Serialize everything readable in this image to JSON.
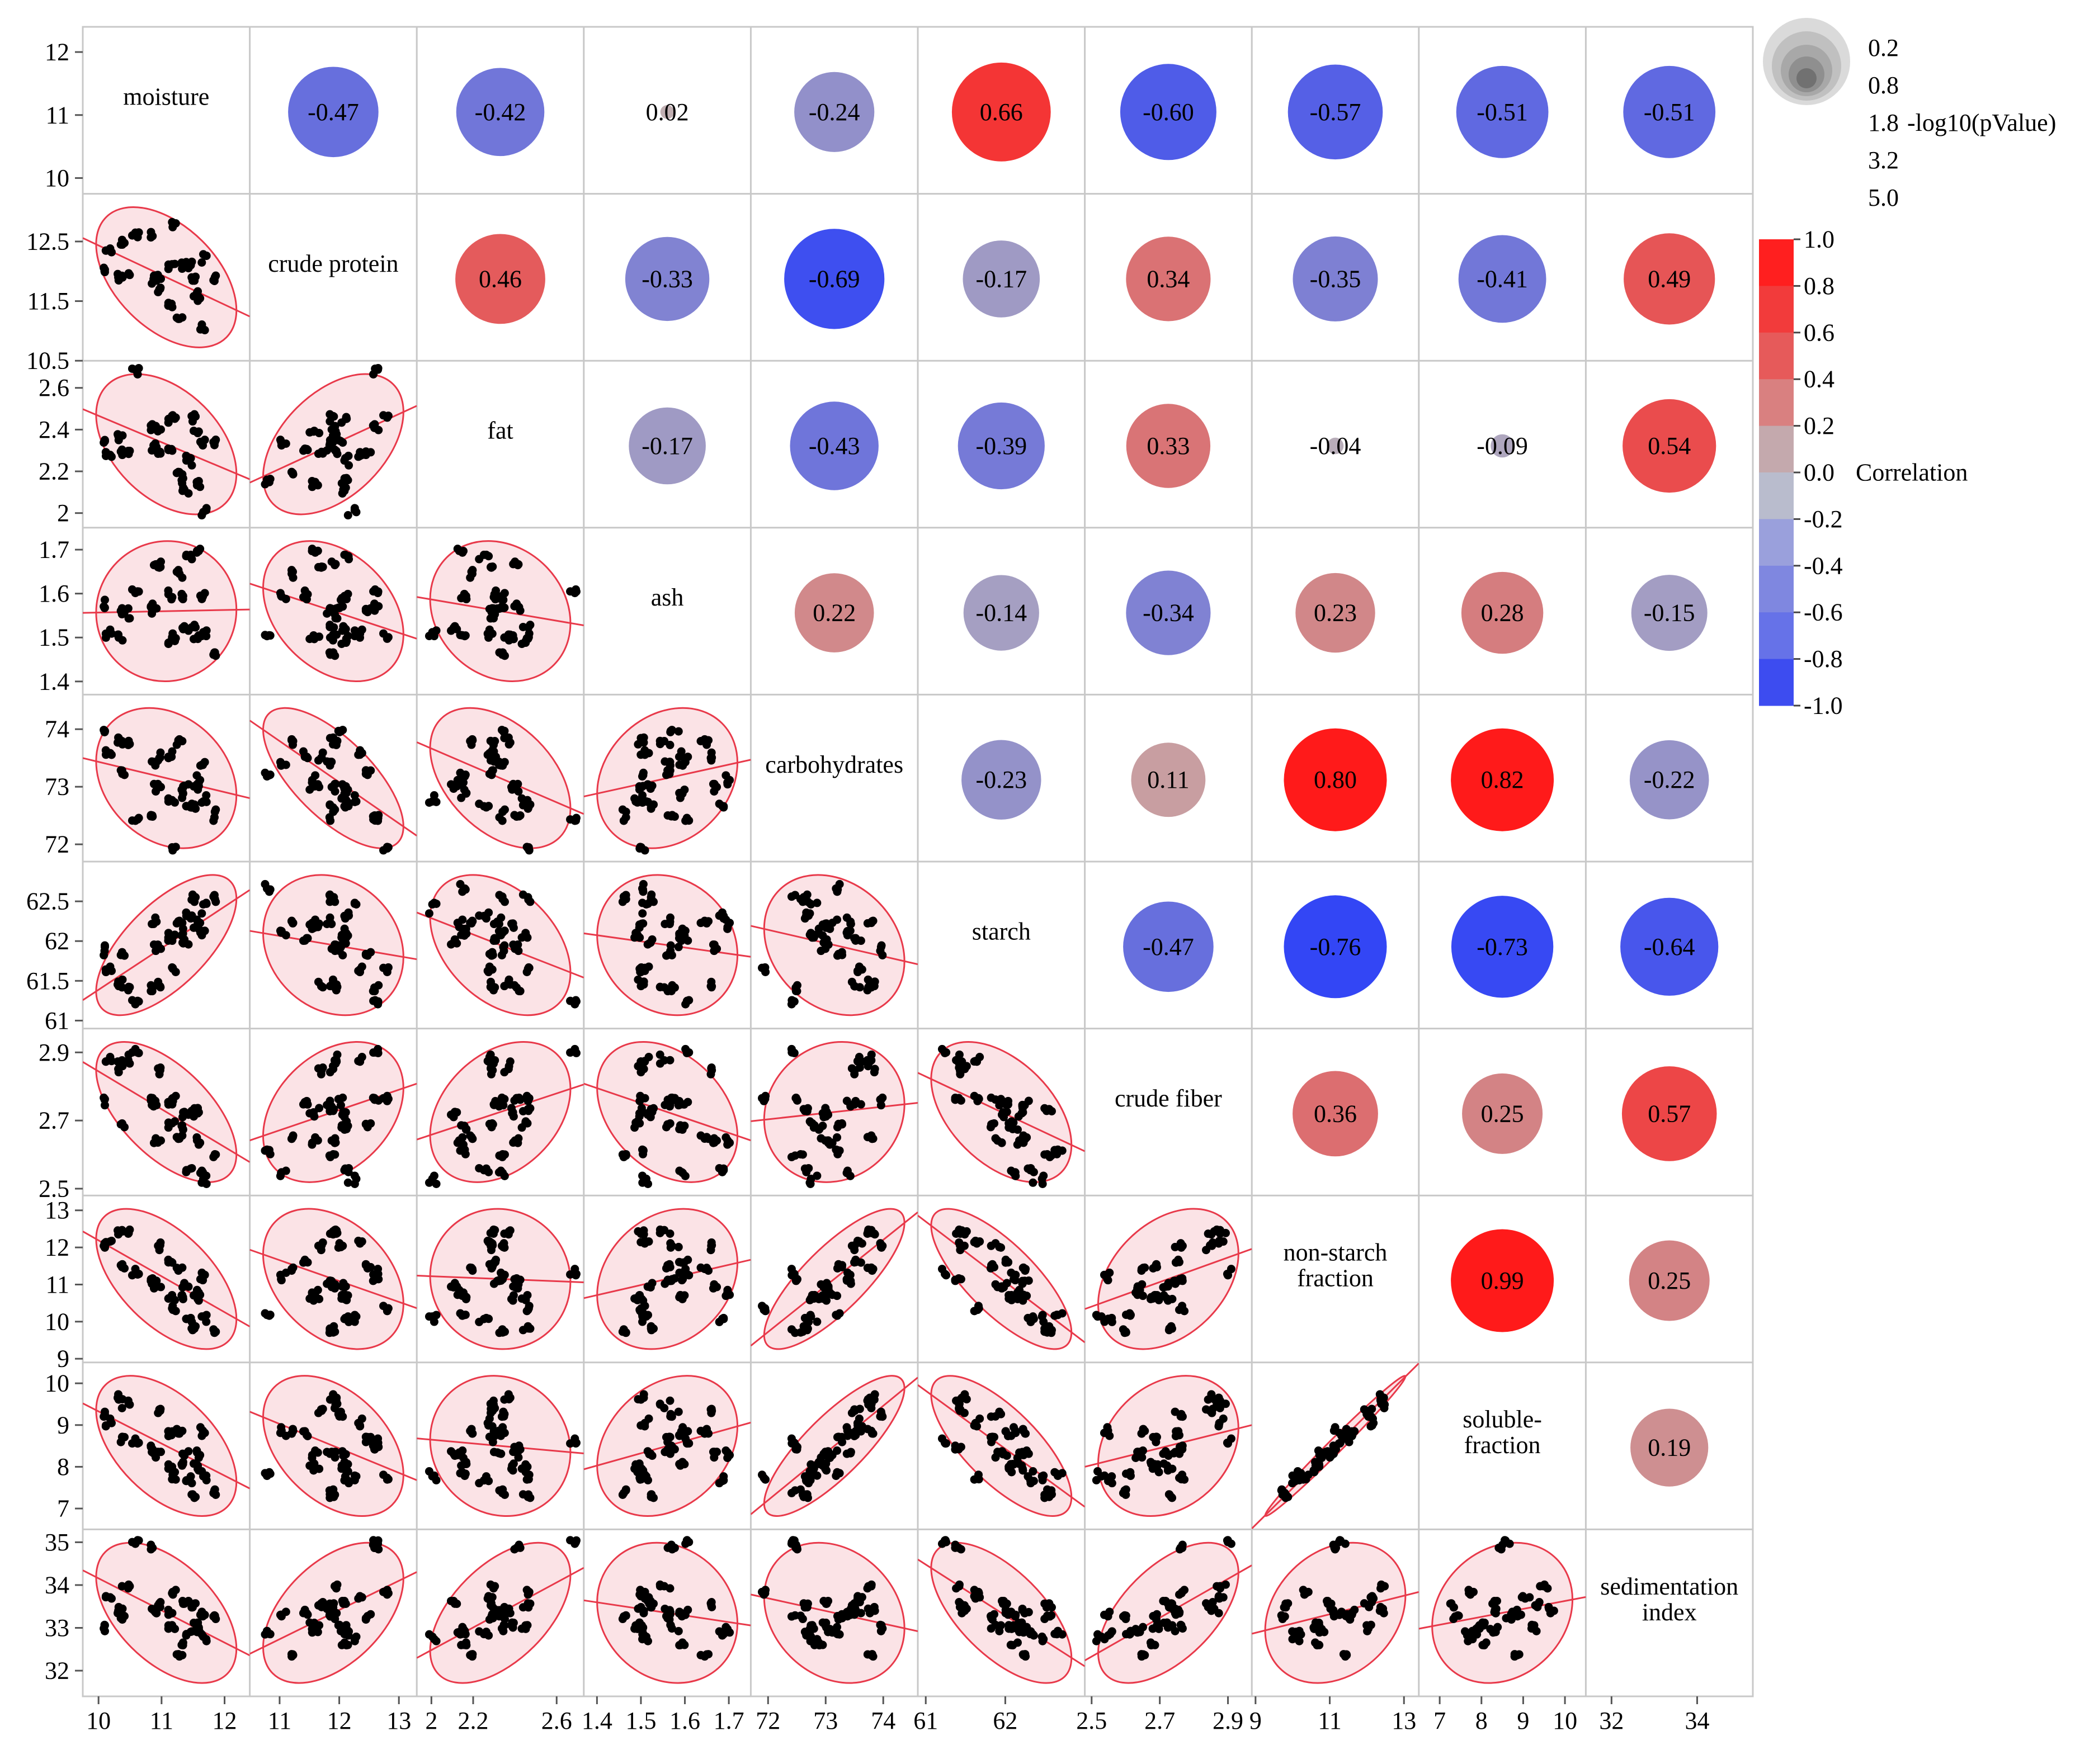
{
  "chart_data": {
    "type": "scatter",
    "variables": [
      "moisture",
      "crude protein",
      "fat",
      "ash",
      "carbohydrates",
      "starch",
      "crude fiber",
      "non-starch fraction",
      "soluble-fraction",
      "sedimentation index"
    ],
    "variable_labels": [
      [
        "moisture"
      ],
      [
        "crude protein"
      ],
      [
        "fat"
      ],
      [
        "ash"
      ],
      [
        "carbohydrates"
      ],
      [
        "starch"
      ],
      [
        "crude fiber"
      ],
      [
        "non-starch",
        "fraction"
      ],
      [
        "soluble-",
        "fraction"
      ],
      [
        "sedimentation",
        "index"
      ]
    ],
    "ranges": [
      [
        9.75,
        12.4
      ],
      [
        10.5,
        13.3
      ],
      [
        1.93,
        2.73
      ],
      [
        1.37,
        1.75
      ],
      [
        71.7,
        74.6
      ],
      [
        60.9,
        63.0
      ],
      [
        2.48,
        2.97
      ],
      [
        8.9,
        13.4
      ],
      [
        6.5,
        10.5
      ],
      [
        31.4,
        35.3
      ]
    ],
    "row_ticks": [
      [
        "10",
        "11",
        "12"
      ],
      [
        "10.5",
        "11.5",
        "12.5"
      ],
      [
        "2",
        "2.2",
        "2.4",
        "2.6"
      ],
      [
        "1.4",
        "1.5",
        "1.6",
        "1.7"
      ],
      [
        "72",
        "73",
        "74"
      ],
      [
        "61",
        "61.5",
        "62",
        "62.5"
      ],
      [
        "2.5",
        "2.7",
        "2.9"
      ],
      [
        "9",
        "10",
        "11",
        "12",
        "13"
      ],
      [
        "7",
        "8",
        "9",
        "10"
      ],
      [
        "32",
        "33",
        "34",
        "35"
      ]
    ],
    "col_ticks": [
      [
        "10",
        "11",
        "12"
      ],
      [
        "11",
        "12",
        "13"
      ],
      [
        "2",
        "2.2",
        "2.6"
      ],
      [
        "1.4",
        "1.5",
        "1.6",
        "1.7"
      ],
      [
        "72",
        "73",
        "74"
      ],
      [
        "61",
        "62"
      ],
      [
        "2.5",
        "2.7",
        "2.9"
      ],
      [
        "9",
        "11",
        "13"
      ],
      [
        "7",
        "8",
        "9",
        "10"
      ],
      [
        "32",
        "34"
      ]
    ],
    "correlations": [
      {
        "row": 0,
        "col": 1,
        "r": -0.47,
        "label": "-0.47"
      },
      {
        "row": 0,
        "col": 2,
        "r": -0.42,
        "label": "-0.42"
      },
      {
        "row": 0,
        "col": 3,
        "r": 0.02,
        "label": "0.02"
      },
      {
        "row": 0,
        "col": 4,
        "r": -0.24,
        "label": "-0.24"
      },
      {
        "row": 0,
        "col": 5,
        "r": 0.66,
        "label": "0.66"
      },
      {
        "row": 0,
        "col": 6,
        "r": -0.6,
        "label": "-0.60"
      },
      {
        "row": 0,
        "col": 7,
        "r": -0.57,
        "label": "-0.57"
      },
      {
        "row": 0,
        "col": 8,
        "r": -0.51,
        "label": "-0.51"
      },
      {
        "row": 0,
        "col": 9,
        "r": -0.51,
        "label": "-0.51"
      },
      {
        "row": 1,
        "col": 2,
        "r": 0.46,
        "label": "0.46"
      },
      {
        "row": 1,
        "col": 3,
        "r": -0.33,
        "label": "-0.33"
      },
      {
        "row": 1,
        "col": 4,
        "r": -0.69,
        "label": "-0.69"
      },
      {
        "row": 1,
        "col": 5,
        "r": -0.17,
        "label": "-0.17"
      },
      {
        "row": 1,
        "col": 6,
        "r": 0.34,
        "label": "0.34"
      },
      {
        "row": 1,
        "col": 7,
        "r": -0.35,
        "label": "-0.35"
      },
      {
        "row": 1,
        "col": 8,
        "r": -0.41,
        "label": "-0.41"
      },
      {
        "row": 1,
        "col": 9,
        "r": 0.49,
        "label": "0.49"
      },
      {
        "row": 2,
        "col": 3,
        "r": -0.17,
        "label": "-0.17"
      },
      {
        "row": 2,
        "col": 4,
        "r": -0.43,
        "label": "-0.43"
      },
      {
        "row": 2,
        "col": 5,
        "r": -0.39,
        "label": "-0.39"
      },
      {
        "row": 2,
        "col": 6,
        "r": 0.33,
        "label": "0.33"
      },
      {
        "row": 2,
        "col": 7,
        "r": -0.04,
        "label": "-0.04"
      },
      {
        "row": 2,
        "col": 8,
        "r": -0.09,
        "label": "-0.09"
      },
      {
        "row": 2,
        "col": 9,
        "r": 0.54,
        "label": "0.54"
      },
      {
        "row": 3,
        "col": 4,
        "r": 0.22,
        "label": "0.22"
      },
      {
        "row": 3,
        "col": 5,
        "r": -0.14,
        "label": "-0.14"
      },
      {
        "row": 3,
        "col": 6,
        "r": -0.34,
        "label": "-0.34"
      },
      {
        "row": 3,
        "col": 7,
        "r": 0.23,
        "label": "0.23"
      },
      {
        "row": 3,
        "col": 8,
        "r": 0.28,
        "label": "0.28"
      },
      {
        "row": 3,
        "col": 9,
        "r": -0.15,
        "label": "-0.15"
      },
      {
        "row": 4,
        "col": 5,
        "r": -0.23,
        "label": "-0.23"
      },
      {
        "row": 4,
        "col": 6,
        "r": 0.11,
        "label": "0.11"
      },
      {
        "row": 4,
        "col": 7,
        "r": 0.8,
        "label": "0.80"
      },
      {
        "row": 4,
        "col": 8,
        "r": 0.82,
        "label": "0.82"
      },
      {
        "row": 4,
        "col": 9,
        "r": -0.22,
        "label": "-0.22"
      },
      {
        "row": 5,
        "col": 6,
        "r": -0.47,
        "label": "-0.47"
      },
      {
        "row": 5,
        "col": 7,
        "r": -0.76,
        "label": "-0.76"
      },
      {
        "row": 5,
        "col": 8,
        "r": -0.73,
        "label": "-0.73"
      },
      {
        "row": 5,
        "col": 9,
        "r": -0.64,
        "label": "-0.64"
      },
      {
        "row": 6,
        "col": 7,
        "r": 0.36,
        "label": "0.36"
      },
      {
        "row": 6,
        "col": 8,
        "r": 0.25,
        "label": "0.25"
      },
      {
        "row": 6,
        "col": 9,
        "r": 0.57,
        "label": "0.57"
      },
      {
        "row": 7,
        "col": 8,
        "r": 0.99,
        "label": "0.99"
      },
      {
        "row": 7,
        "col": 9,
        "r": 0.25,
        "label": "0.25"
      },
      {
        "row": 8,
        "col": 9,
        "r": 0.19,
        "label": "0.19"
      }
    ],
    "size_legend": {
      "title": "-log10(pValue)",
      "values": [
        "0.2",
        "0.8",
        "1.8",
        "3.2",
        "5.0"
      ]
    },
    "color_legend": {
      "title": "Correlation",
      "ticks": [
        "1.0",
        "0.8",
        "0.6",
        "0.4",
        "0.2",
        "0.0",
        "-0.2",
        "-0.4",
        "-0.6",
        "-0.8",
        "-1.0"
      ],
      "bands": [
        "#ff1f1f",
        "#f23b3b",
        "#e65a5a",
        "#d98080",
        "#c4a9ad",
        "#b9bccd",
        "#9aa0dc",
        "#7f87e0",
        "#6672e8",
        "#3d4cf0"
      ]
    },
    "colors": {
      "positive": "#ff1a1a",
      "negative": "#3346f5",
      "neutral": "#bfb3b6",
      "ellipse_fill": "#fbe3e6",
      "ellipse_stroke": "#e8394a",
      "fit_line": "#e8394a",
      "points": "#000000",
      "grid": "#c8c8c8"
    }
  }
}
